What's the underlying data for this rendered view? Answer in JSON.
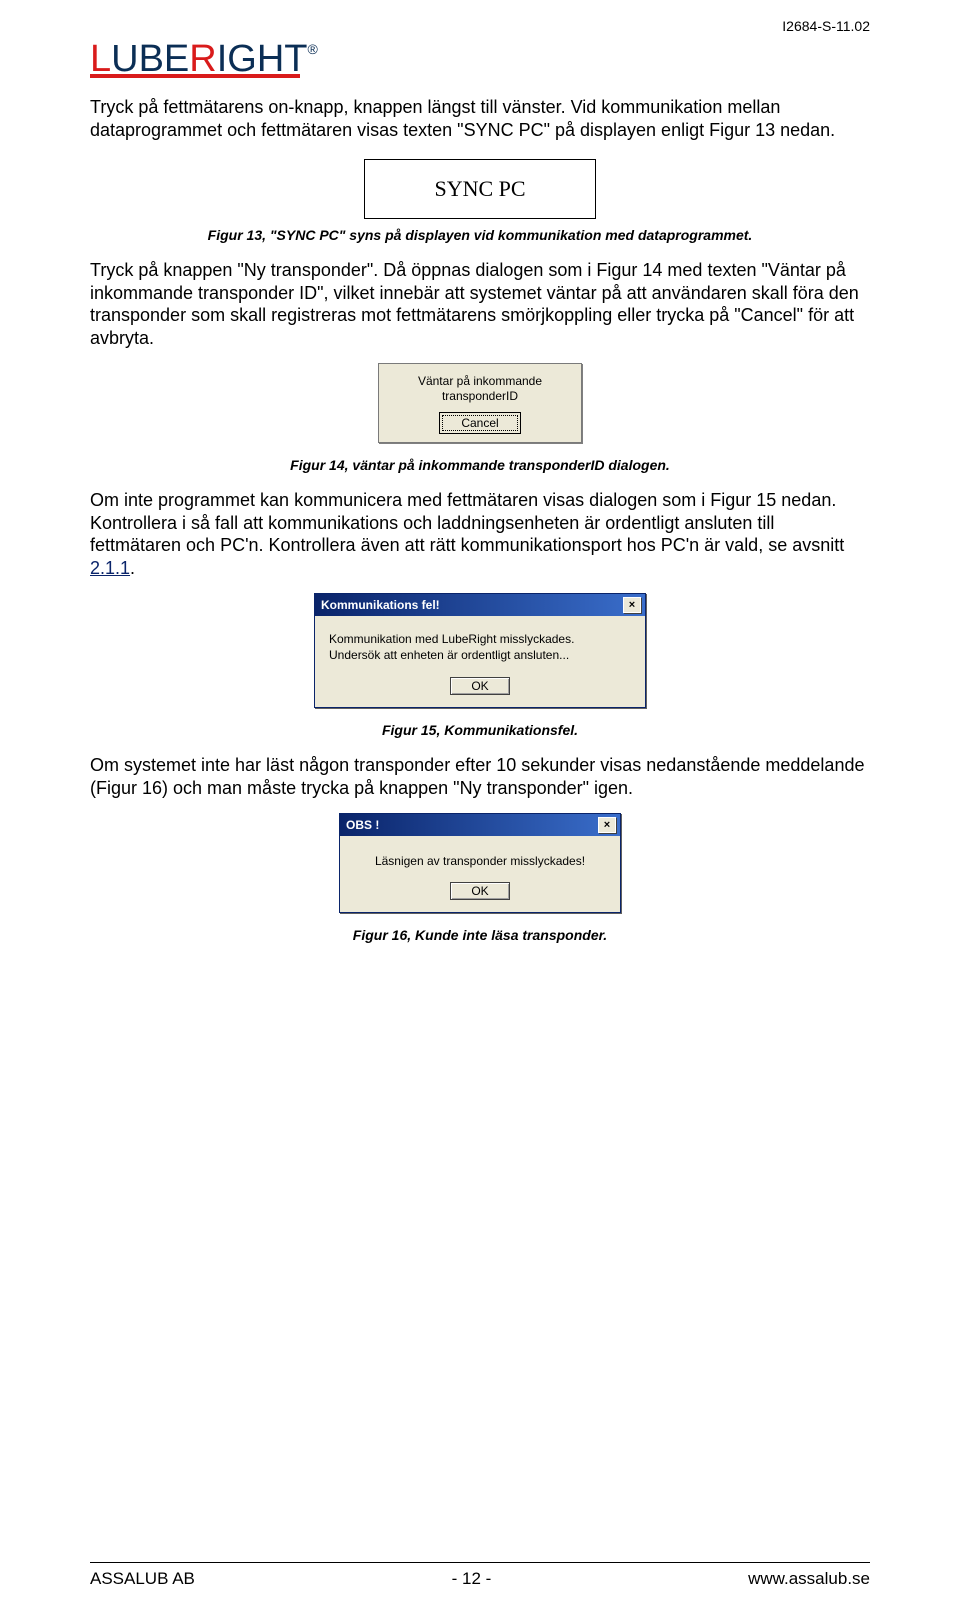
{
  "doc_id": "I2684-S-11.02",
  "logo": {
    "l": "L",
    "ube": "UBE",
    "r": "R",
    "ight": "IGHT",
    "reg": "®"
  },
  "p1": "Tryck på fettmätarens on-knapp, knappen längst till vänster. Vid kommunikation mellan dataprogrammet och fettmätaren visas texten \"SYNC PC\" på displayen enligt Figur 13 nedan.",
  "sync_box": "SYNC PC",
  "cap13": "Figur 13, \"SYNC PC\" syns på displayen vid kommunikation med dataprogrammet.",
  "p2": "Tryck på knappen \"Ny transponder\". Då öppnas dialogen som i Figur 14 med texten \"Väntar på inkommande transponder ID\", vilket innebär att systemet väntar på att användaren skall föra den transponder som skall registreras mot fettmätarens smörjkoppling eller trycka på \"Cancel\" för att avbryta.",
  "dlg14": {
    "line1": "Väntar på inkommande",
    "line2": "transponderID",
    "cancel": "Cancel"
  },
  "cap14": "Figur 14, väntar på inkommande transponderID dialogen.",
  "p3a": "Om inte programmet kan kommunicera med fettmätaren visas dialogen som i Figur 15 nedan. Kontrollera i så fall att kommunikations och laddningsenheten är ordentligt ansluten till fettmätaren och PC'n. Kontrollera även att rätt kommunikationsport hos PC'n är vald, se avsnitt ",
  "p3_link": "2.1.1",
  "p3b": ".",
  "dlg15": {
    "title": "Kommunikations fel!",
    "body": "Kommunikation med LubeRight misslyckades.\nUndersök att enheten är ordentligt ansluten...",
    "ok": "OK"
  },
  "cap15": "Figur 15, Kommunikationsfel.",
  "p4": "Om systemet inte har läst någon transponder efter 10 sekunder visas nedanstående meddelande (Figur 16) och man måste trycka på knappen \"Ny transponder\" igen.",
  "dlg16": {
    "title": "OBS !",
    "body": "Läsnigen av transponder misslyckades!",
    "ok": "OK"
  },
  "cap16": "Figur 16, Kunde inte läsa transponder.",
  "footer": {
    "left": "ASSALUB AB",
    "center": "- 12 -",
    "right": "www.assalub.se"
  },
  "colors": {
    "red": "#d91b1b",
    "navy": "#0b2e55",
    "win_bg": "#ece9d8",
    "title_grad_a": "#0a246a",
    "title_grad_b": "#3a6ecb"
  }
}
